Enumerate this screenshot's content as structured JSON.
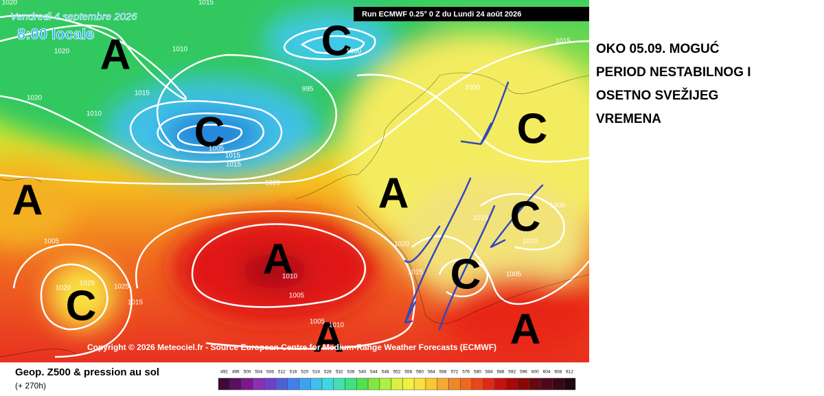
{
  "header": {
    "date": "Vendredi 4 septembre 2026",
    "time": "8:00 locale",
    "run": "Run ECMWF 0.25° 0 Z du Lundi 24 août 2026"
  },
  "pressure_centers": [
    "A",
    "C",
    "C",
    "C",
    "A",
    "A",
    "C",
    "A",
    "C",
    "C",
    "A",
    "A"
  ],
  "isobar_labels": [
    1015,
    1020,
    1020,
    1000,
    1010,
    1015,
    1020,
    1010,
    1015,
    995,
    1000,
    1005,
    1015,
    1015,
    1020,
    1005,
    1000,
    1010,
    1015,
    1025,
    1020,
    1025,
    1015,
    1020,
    1010,
    1005,
    1005,
    1015,
    1005,
    1010
  ],
  "copyright": "Copyright © 2026 Meteociel.fr - Source European Centre for Medium-Range Weather Forecasts (ECMWF)",
  "annotation": {
    "lines": [
      "OKO 05.09. MOGUĆ",
      "PERIOD NESTABILNOG I",
      "OSETNO SVEŽIJEG",
      "VREMENA"
    ]
  },
  "legend": {
    "title": "Geop. Z500 & pression au sol",
    "lead_time": "(+ 270h)",
    "scale": [
      492,
      496,
      500,
      504,
      508,
      512,
      516,
      520,
      524,
      528,
      532,
      536,
      540,
      544,
      548,
      552,
      556,
      560,
      564,
      568,
      572,
      576,
      580,
      584,
      588,
      592,
      596,
      600,
      604,
      608,
      612
    ]
  }
}
